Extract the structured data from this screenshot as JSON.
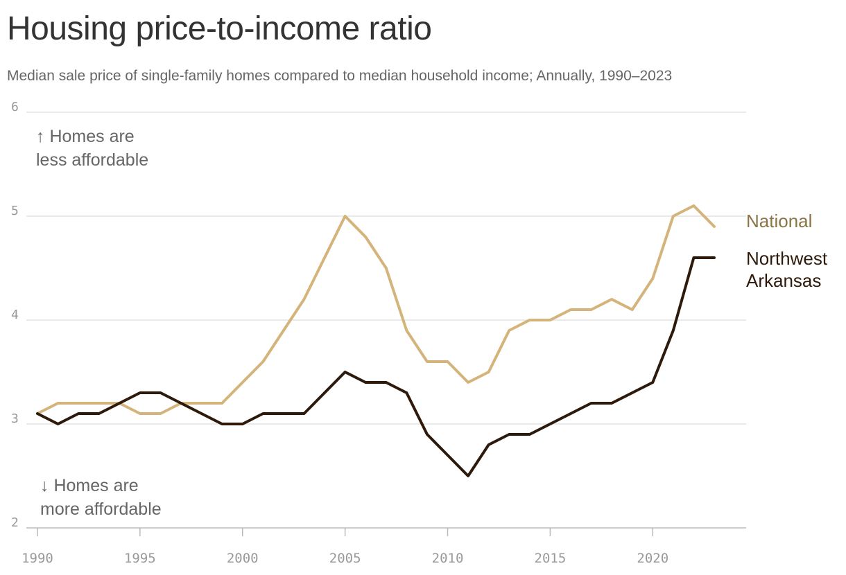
{
  "chart_data": {
    "type": "line",
    "title": "Housing price-to-income ratio",
    "subtitle": "Median sale price of single-family homes compared to median household income; Annually, 1990–2023",
    "x": [
      1990,
      1991,
      1992,
      1993,
      1994,
      1995,
      1996,
      1997,
      1998,
      1999,
      2000,
      2001,
      2002,
      2003,
      2004,
      2005,
      2006,
      2007,
      2008,
      2009,
      2010,
      2011,
      2012,
      2013,
      2014,
      2015,
      2016,
      2017,
      2018,
      2019,
      2020,
      2021,
      2022,
      2023
    ],
    "xlim": [
      1990,
      2023
    ],
    "ylim": [
      2,
      6
    ],
    "y_ticks": [
      2,
      3,
      4,
      5,
      6
    ],
    "x_ticks": [
      1990,
      1995,
      2000,
      2005,
      2010,
      2015,
      2020
    ],
    "grid": true,
    "series": [
      {
        "name": "National",
        "label_lines": [
          "National"
        ],
        "color": "#d4b47a",
        "label_color": "#8c7445",
        "values": [
          3.1,
          3.2,
          3.2,
          3.2,
          3.2,
          3.1,
          3.1,
          3.2,
          3.2,
          3.2,
          3.4,
          3.6,
          3.9,
          4.2,
          4.6,
          5.0,
          4.8,
          4.5,
          3.9,
          3.6,
          3.6,
          3.4,
          3.5,
          3.9,
          4.0,
          4.0,
          4.1,
          4.1,
          4.2,
          4.1,
          4.4,
          5.0,
          5.1,
          4.9
        ]
      },
      {
        "name": "Northwest Arkansas",
        "label_lines": [
          "Northwest",
          "Arkansas"
        ],
        "color": "#2e1a0b",
        "label_color": "#2e1a0b",
        "values": [
          3.1,
          3.0,
          3.1,
          3.1,
          3.2,
          3.3,
          3.3,
          3.2,
          3.1,
          3.0,
          3.0,
          3.1,
          3.1,
          3.1,
          3.3,
          3.5,
          3.4,
          3.4,
          3.3,
          2.9,
          2.7,
          2.5,
          2.8,
          2.9,
          2.9,
          3.0,
          3.1,
          3.2,
          3.2,
          3.3,
          3.4,
          3.9,
          4.6,
          4.6
        ]
      }
    ],
    "annotations": {
      "up": {
        "line1": "↑ Homes are",
        "line2": "less affordable"
      },
      "down": {
        "line1": "↓ Homes are",
        "line2": "more affordable"
      }
    },
    "colors": {
      "grid": "#dddddd",
      "axis": "#bbbbbb"
    }
  }
}
